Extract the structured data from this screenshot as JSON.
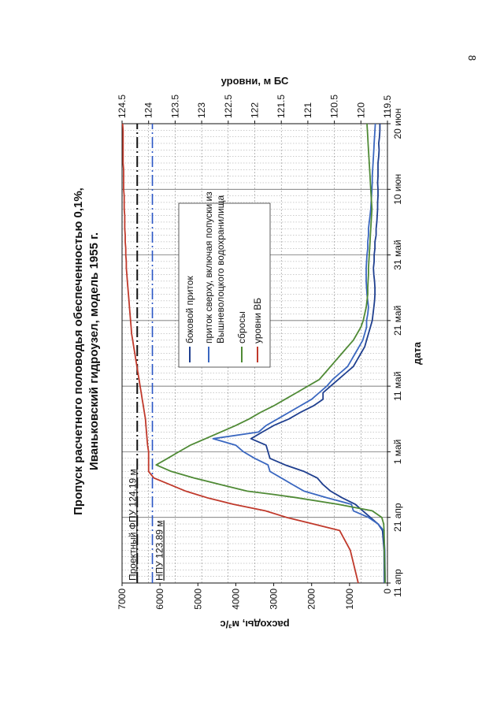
{
  "page_number": "8",
  "chart_data": {
    "type": "line",
    "title_line1": "Пропуск расчетного половодья обеспеченностью 0,1%,",
    "title_line2": "Иваньковский гидроузел, модель 1955 г.",
    "xlabel": "дата",
    "ylabel_left": "расходы, м³/с",
    "ylabel_right": "уровни, м БС",
    "x_ticks": [
      "11 апр",
      "21 апр",
      "1 май",
      "11 май",
      "21 май",
      "31 май",
      "10 июн",
      "20 июн"
    ],
    "x_range_days": [
      0,
      70
    ],
    "y_left_range": [
      0,
      7000
    ],
    "y_left_ticks": [
      "0",
      "1000",
      "2000",
      "3000",
      "4000",
      "5000",
      "6000",
      "7000"
    ],
    "y_right_range": [
      119.5,
      124.5
    ],
    "y_right_ticks": [
      "119.5",
      "120",
      "120.5",
      "121",
      "121.5",
      "122",
      "122.5",
      "123",
      "123.5",
      "124",
      "124.5"
    ],
    "grid": true,
    "legend_position": "inside-top-right",
    "series": [
      {
        "name": "боковой приток",
        "axis": "left",
        "color": "#1f3f8f",
        "x": [
          0,
          5,
          8,
          9,
          10,
          11,
          12,
          13,
          14,
          15,
          16,
          17,
          18,
          19,
          20,
          21,
          22,
          23,
          24,
          25,
          26,
          27,
          28,
          29,
          30,
          31,
          32,
          33,
          34,
          35,
          36,
          37,
          38,
          39,
          40,
          41,
          42,
          43,
          44,
          45,
          46,
          47,
          48,
          49,
          50,
          51,
          52,
          53,
          54,
          55,
          56,
          57,
          58,
          59,
          60,
          61,
          62,
          63,
          64,
          65,
          66,
          67,
          68,
          69,
          70
        ],
        "y": [
          80,
          90,
          130,
          250,
          450,
          650,
          850,
          1200,
          1500,
          1700,
          1850,
          2200,
          2700,
          3100,
          3150,
          3200,
          3600,
          3300,
          3000,
          2600,
          2300,
          1950,
          1700,
          1700,
          1500,
          1300,
          1100,
          900,
          800,
          700,
          600,
          550,
          500,
          450,
          400,
          380,
          360,
          340,
          330,
          330,
          340,
          360,
          370,
          350,
          350,
          330,
          330,
          300,
          300,
          280,
          270,
          260,
          260,
          250,
          250,
          260,
          250,
          250,
          250,
          230,
          220,
          230,
          210,
          200,
          200
        ]
      },
      {
        "name": "приток сверху, включая попуски из Вышневолоцкого водохранилища",
        "axis": "left",
        "color": "#3a67c0",
        "x": [
          0,
          5,
          8,
          9,
          10,
          11,
          12,
          13,
          14,
          15,
          16,
          17,
          18,
          19,
          20,
          21,
          22,
          23,
          24,
          25,
          26,
          27,
          28,
          29,
          30,
          31,
          32,
          33,
          34,
          35,
          36,
          37,
          38,
          39,
          40,
          41,
          42,
          43,
          44,
          45,
          46,
          47,
          48,
          49,
          50,
          51,
          52,
          53,
          54,
          55,
          56,
          57,
          58,
          59,
          60,
          61,
          62,
          63,
          64,
          65,
          66,
          67,
          68,
          69,
          70
        ],
        "y": [
          60,
          70,
          100,
          250,
          500,
          900,
          950,
          1600,
          2200,
          2500,
          2800,
          3100,
          3150,
          3500,
          3800,
          4000,
          4600,
          3400,
          3200,
          2900,
          2600,
          2300,
          2000,
          1800,
          1600,
          1450,
          1250,
          1050,
          950,
          850,
          750,
          650,
          600,
          550,
          550,
          520,
          500,
          520,
          540,
          550,
          560,
          560,
          560,
          550,
          540,
          520,
          520,
          500,
          500,
          480,
          460,
          440,
          430,
          420,
          410,
          400,
          400,
          390,
          380,
          370,
          360,
          350,
          340,
          330,
          320
        ]
      },
      {
        "name": "сбросы",
        "axis": "left",
        "color": "#4f8a35",
        "x": [
          0,
          5,
          8,
          9,
          10,
          11,
          12,
          13,
          13.5,
          14,
          15,
          16,
          17,
          18,
          19,
          20,
          21,
          22,
          23,
          24,
          25,
          26,
          27,
          28,
          29,
          30,
          31,
          32,
          33,
          34,
          35,
          36,
          37,
          38,
          39,
          40,
          41,
          42,
          43,
          44,
          45,
          46,
          47,
          48,
          49,
          50,
          51,
          52,
          53,
          54,
          55,
          56,
          57,
          58,
          59,
          60,
          61,
          62,
          63,
          64,
          65,
          66,
          67,
          68,
          69,
          70
        ],
        "y": [
          60,
          80,
          90,
          100,
          150,
          400,
          1300,
          2400,
          3000,
          3700,
          4400,
          5100,
          5700,
          6100,
          5800,
          5500,
          5200,
          4800,
          4400,
          4000,
          3650,
          3350,
          3000,
          2700,
          2400,
          2100,
          1800,
          1650,
          1500,
          1350,
          1200,
          1050,
          900,
          800,
          700,
          640,
          600,
          560,
          540,
          520,
          520,
          510,
          500,
          500,
          490,
          480,
          470,
          460,
          450,
          440,
          430,
          420,
          410,
          420,
          430,
          440,
          450,
          460,
          470,
          480,
          490,
          500,
          510,
          520,
          530,
          540
        ]
      },
      {
        "name": "уровни ВБ",
        "axis": "right",
        "color": "#c0392b",
        "x": [
          0,
          5,
          8,
          9,
          10,
          11,
          12,
          13,
          14,
          15,
          16,
          17,
          18,
          19,
          20,
          21,
          22,
          23,
          24,
          25,
          26,
          27,
          28,
          29,
          30,
          31,
          32,
          33,
          34,
          35,
          36,
          37,
          38,
          39,
          40,
          41,
          42,
          43,
          44,
          45,
          46,
          47,
          48,
          49,
          50,
          51,
          52,
          53,
          54,
          55,
          56,
          57,
          58,
          59,
          60,
          61,
          62,
          63,
          64,
          65,
          66,
          67,
          68,
          69,
          70
        ],
        "y": [
          120.05,
          120.2,
          120.4,
          120.9,
          121.4,
          121.8,
          122.4,
          122.9,
          123.3,
          123.6,
          123.9,
          124.0,
          124.0,
          124.0,
          124.0,
          124.02,
          124.03,
          124.04,
          124.05,
          124.06,
          124.08,
          124.1,
          124.12,
          124.14,
          124.16,
          124.18,
          124.2,
          124.22,
          124.24,
          124.26,
          124.28,
          124.3,
          124.32,
          124.33,
          124.34,
          124.35,
          124.36,
          124.37,
          124.38,
          124.39,
          124.4,
          124.41,
          124.42,
          124.42,
          124.43,
          124.43,
          124.44,
          124.44,
          124.45,
          124.45,
          124.45,
          124.46,
          124.46,
          124.46,
          124.47,
          124.47,
          124.47,
          124.47,
          124.48,
          124.48,
          124.48,
          124.48,
          124.48,
          124.48,
          124.49
        ]
      }
    ],
    "ref_lines": [
      {
        "label": "Проектный ФПУ 124.19 м",
        "axis": "left",
        "y": 6600,
        "color": "#111111",
        "style": "dashdot"
      },
      {
        "label": "НПУ 123.89 м",
        "axis": "left",
        "y": 6200,
        "color": "#2a56c6",
        "style": "dashdot"
      }
    ]
  }
}
